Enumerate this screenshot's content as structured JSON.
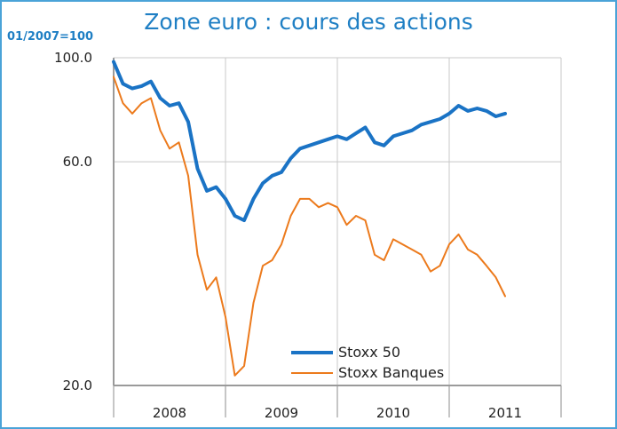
{
  "header": {
    "title": "Zone euro : cours des actions",
    "unit_label": "01/2007=100"
  },
  "chart_data": {
    "type": "line",
    "title": "Zone euro : cours des actions",
    "ylabel": "01/2007=100",
    "y_scale": "log",
    "ylim": [
      20,
      100
    ],
    "y_ticks": [
      {
        "value": 100,
        "label": "100.0"
      },
      {
        "value": 60,
        "label": "60.0"
      },
      {
        "value": 20,
        "label": "20.0"
      }
    ],
    "x_range": [
      "2008-01",
      "2012-01"
    ],
    "x_ticks": [
      "2008",
      "2009",
      "2010",
      "2011"
    ],
    "grid": true,
    "legend_position": "bottom-center",
    "series": [
      {
        "name": "Stoxx 50",
        "color": "#1a73c5",
        "points": [
          [
            "2008-01",
            98
          ],
          [
            "2008-02",
            88
          ],
          [
            "2008-03",
            86
          ],
          [
            "2008-04",
            87
          ],
          [
            "2008-05",
            89
          ],
          [
            "2008-06",
            82
          ],
          [
            "2008-07",
            79
          ],
          [
            "2008-08",
            80
          ],
          [
            "2008-09",
            73
          ],
          [
            "2008-10",
            58
          ],
          [
            "2008-11",
            52
          ],
          [
            "2008-12",
            53
          ],
          [
            "2009-01",
            50
          ],
          [
            "2009-02",
            46
          ],
          [
            "2009-03",
            45
          ],
          [
            "2009-04",
            50
          ],
          [
            "2009-05",
            54
          ],
          [
            "2009-06",
            56
          ],
          [
            "2009-07",
            57
          ],
          [
            "2009-08",
            61
          ],
          [
            "2009-09",
            64
          ],
          [
            "2009-10",
            65
          ],
          [
            "2009-11",
            66
          ],
          [
            "2009-12",
            67
          ],
          [
            "2010-01",
            68
          ],
          [
            "2010-02",
            67
          ],
          [
            "2010-03",
            69
          ],
          [
            "2010-04",
            71
          ],
          [
            "2010-05",
            66
          ],
          [
            "2010-06",
            65
          ],
          [
            "2010-07",
            68
          ],
          [
            "2010-08",
            69
          ],
          [
            "2010-09",
            70
          ],
          [
            "2010-10",
            72
          ],
          [
            "2010-11",
            73
          ],
          [
            "2010-12",
            74
          ],
          [
            "2011-01",
            76
          ],
          [
            "2011-02",
            79
          ],
          [
            "2011-03",
            77
          ],
          [
            "2011-04",
            78
          ],
          [
            "2011-05",
            77
          ],
          [
            "2011-06",
            75
          ],
          [
            "2011-07",
            76
          ]
        ]
      },
      {
        "name": "Stoxx Banques",
        "color": "#ec7a1c",
        "points": [
          [
            "2008-01",
            91
          ],
          [
            "2008-02",
            80
          ],
          [
            "2008-03",
            76
          ],
          [
            "2008-04",
            80
          ],
          [
            "2008-05",
            82
          ],
          [
            "2008-06",
            70
          ],
          [
            "2008-07",
            64
          ],
          [
            "2008-08",
            66
          ],
          [
            "2008-09",
            56
          ],
          [
            "2008-10",
            38
          ],
          [
            "2008-11",
            32
          ],
          [
            "2008-12",
            34
          ],
          [
            "2009-01",
            28
          ],
          [
            "2009-02",
            21
          ],
          [
            "2009-03",
            22
          ],
          [
            "2009-04",
            30
          ],
          [
            "2009-05",
            36
          ],
          [
            "2009-06",
            37
          ],
          [
            "2009-07",
            40
          ],
          [
            "2009-08",
            46
          ],
          [
            "2009-09",
            50
          ],
          [
            "2009-10",
            50
          ],
          [
            "2009-11",
            48
          ],
          [
            "2009-12",
            49
          ],
          [
            "2010-01",
            48
          ],
          [
            "2010-02",
            44
          ],
          [
            "2010-03",
            46
          ],
          [
            "2010-04",
            45
          ],
          [
            "2010-05",
            38
          ],
          [
            "2010-06",
            37
          ],
          [
            "2010-07",
            41
          ],
          [
            "2010-08",
            40
          ],
          [
            "2010-09",
            39
          ],
          [
            "2010-10",
            38
          ],
          [
            "2010-11",
            35
          ],
          [
            "2010-12",
            36
          ],
          [
            "2011-01",
            40
          ],
          [
            "2011-02",
            42
          ],
          [
            "2011-03",
            39
          ],
          [
            "2011-04",
            38
          ],
          [
            "2011-05",
            36
          ],
          [
            "2011-06",
            34
          ],
          [
            "2011-07",
            31
          ]
        ]
      }
    ]
  }
}
